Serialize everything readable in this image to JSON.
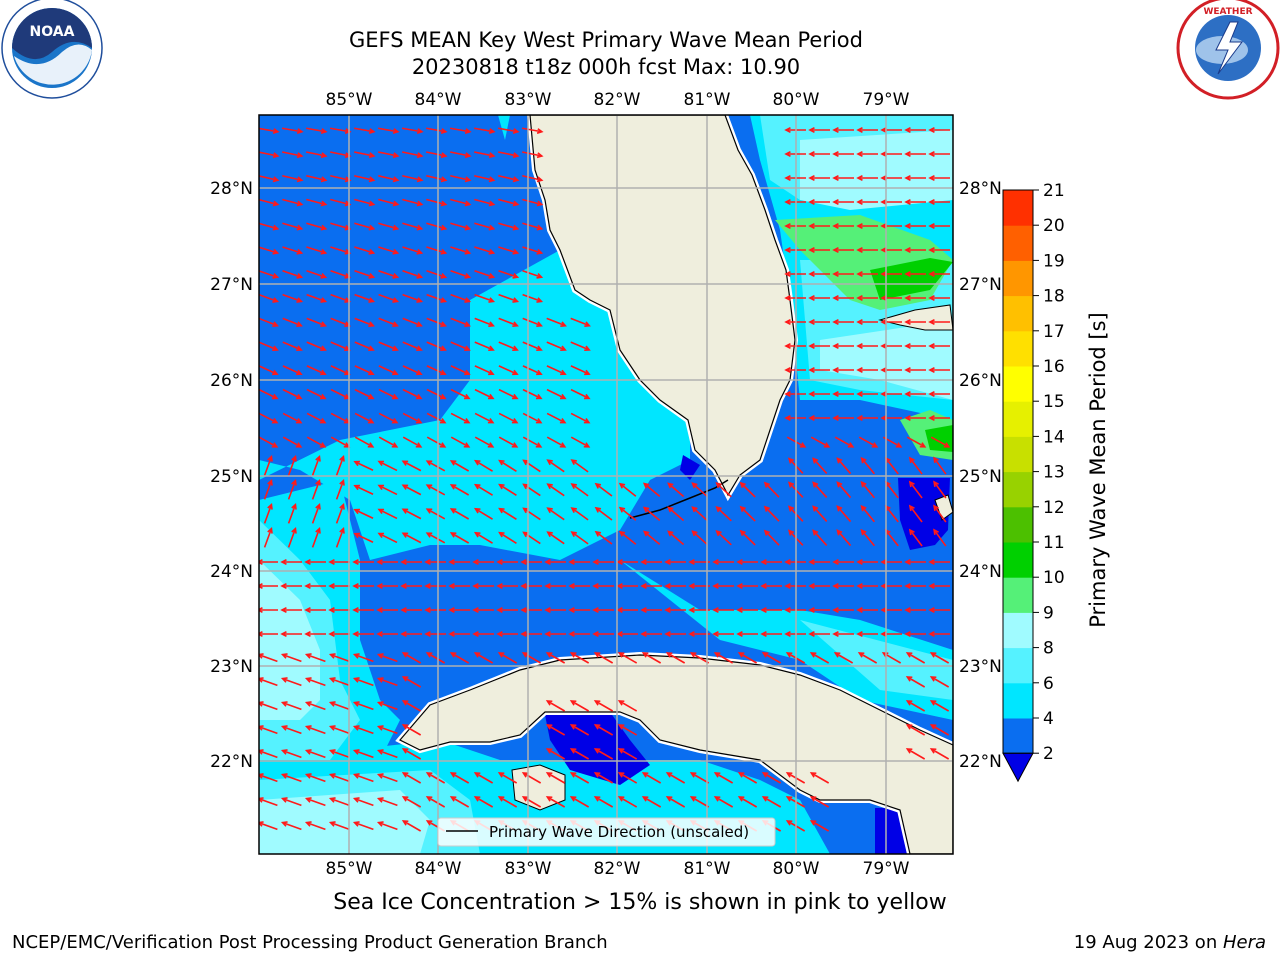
{
  "title": {
    "line1": "GEFS MEAN Key West Primary Wave Mean Period",
    "line2": "20230818 t18z 000h fcst   Max: 10.90"
  },
  "axes": {
    "lon_labels": [
      "85°W",
      "84°W",
      "83°W",
      "82°W",
      "81°W",
      "80°W",
      "79°W"
    ],
    "lat_labels": [
      "28°N",
      "27°N",
      "26°N",
      "25°N",
      "24°N",
      "23°N",
      "22°N"
    ]
  },
  "colorbar": {
    "label": "Primary Wave Mean Period [s]",
    "ticks": [
      "2",
      "4",
      "6",
      "8",
      "9",
      "10",
      "11",
      "12",
      "13",
      "14",
      "15",
      "16",
      "17",
      "18",
      "19",
      "20",
      "21"
    ],
    "colors": [
      "#0a6ef0",
      "#00e6ff",
      "#55f2ff",
      "#a0fbff",
      "#55f078",
      "#00d000",
      "#4cc000",
      "#98d200",
      "#c8e000",
      "#e6f000",
      "#ffff00",
      "#ffe000",
      "#ffc000",
      "#ff9600",
      "#ff6000",
      "#ff3000",
      "#ff0000"
    ],
    "below_color": "#0000e6"
  },
  "legend": {
    "label": "Primary Wave Direction (unscaled)"
  },
  "logos": {
    "left": "NOAA",
    "right": "NATIONAL WEATHER SERVICE"
  },
  "note": "Sea Ice Concentration > 15% is shown in pink to yellow",
  "footer": {
    "left": "NCEP/EMC/Verification Post Processing Product Generation Branch",
    "right_prefix": "19 Aug 2023 on ",
    "right_machine": "Hera"
  }
}
